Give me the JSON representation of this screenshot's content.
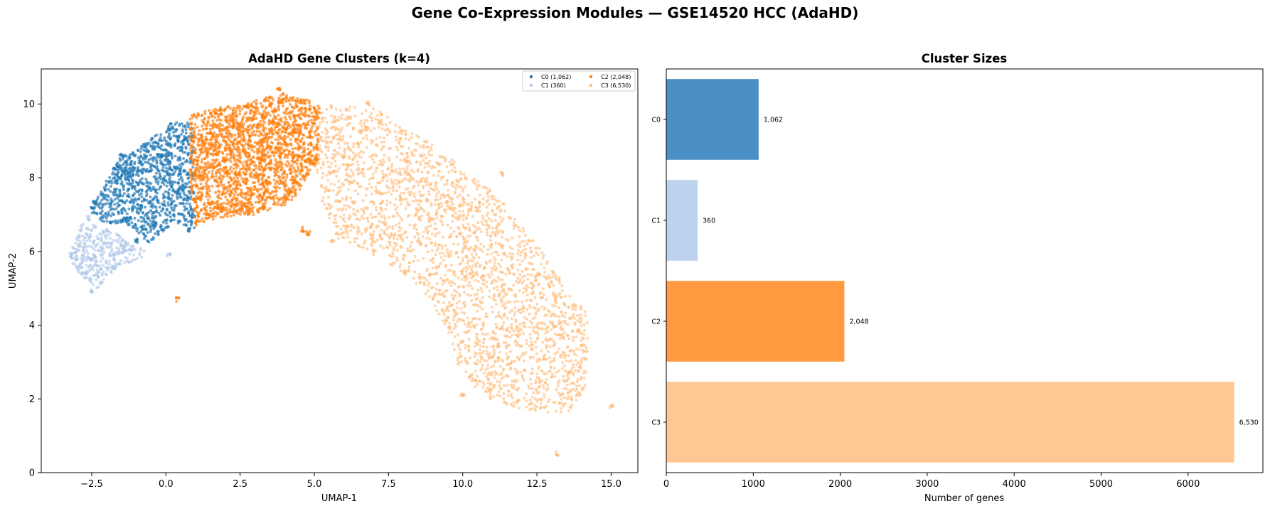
{
  "figure": {
    "suptitle": "Gene Co-Expression Modules — GSE14520 HCC (AdaHD)"
  },
  "chart_data": [
    {
      "type": "scatter",
      "title": "AdaHD Gene Clusters (k=4)",
      "xlabel": "UMAP-1",
      "ylabel": "UMAP-2",
      "xlim": [
        -4.2,
        15.9
      ],
      "ylim": [
        0,
        10.95
      ],
      "xticks": [
        -2.5,
        0.0,
        2.5,
        5.0,
        7.5,
        10.0,
        12.5,
        15.0
      ],
      "xtick_labels": [
        "−2.5",
        "0.0",
        "2.5",
        "5.0",
        "7.5",
        "10.0",
        "12.5",
        "15.0"
      ],
      "yticks": [
        0,
        2,
        4,
        6,
        8,
        10
      ],
      "ytick_labels": [
        "0",
        "2",
        "4",
        "6",
        "8",
        "10"
      ],
      "grid": false,
      "legend_position": "top-right",
      "legend_columns": 2,
      "series": [
        {
          "name": "C0 (1,062)",
          "color": "#1f77b4",
          "count": 1062,
          "region": [
            [
              -2.6,
              7.1
            ],
            [
              -1.6,
              8.5
            ],
            [
              -0.6,
              9.0
            ],
            [
              0.2,
              9.5
            ],
            [
              0.9,
              9.5
            ],
            [
              1.0,
              6.6
            ],
            [
              0.3,
              6.8
            ],
            [
              -0.6,
              6.2
            ],
            [
              -1.2,
              6.7
            ],
            [
              -2.1,
              6.8
            ]
          ],
          "points": [
            [
              0.4,
              9.1
            ],
            [
              -1.5,
              8.6
            ],
            [
              -2.4,
              7.3
            ],
            [
              -1.0,
              6.3
            ],
            [
              0.8,
              6.6
            ],
            [
              -0.2,
              8.6
            ]
          ]
        },
        {
          "name": "C1 (360)",
          "color": "#aec7e8",
          "count": 360,
          "region": [
            [
              -3.3,
              5.8
            ],
            [
              -2.8,
              6.8
            ],
            [
              -1.9,
              6.6
            ],
            [
              -0.9,
              6.1
            ],
            [
              -0.5,
              5.9
            ],
            [
              -1.6,
              5.6
            ],
            [
              -2.3,
              5.0
            ],
            [
              -3.1,
              5.5
            ]
          ],
          "points": [
            [
              -3.2,
              5.9
            ],
            [
              -2.5,
              4.9
            ],
            [
              -2.6,
              6.9
            ],
            [
              0.1,
              5.9
            ]
          ]
        },
        {
          "name": "C2 (2,048)",
          "color": "#ff7f0e",
          "count": 2048,
          "region": [
            [
              0.8,
              9.7
            ],
            [
              1.8,
              9.9
            ],
            [
              3.0,
              10.1
            ],
            [
              4.0,
              10.3
            ],
            [
              5.2,
              10.0
            ],
            [
              5.1,
              8.4
            ],
            [
              4.2,
              7.3
            ],
            [
              3.0,
              7.0
            ],
            [
              1.7,
              6.9
            ],
            [
              1.0,
              6.7
            ],
            [
              0.8,
              8.0
            ]
          ],
          "points": [
            [
              3.8,
              10.4
            ],
            [
              0.4,
              4.7
            ],
            [
              4.8,
              6.5
            ],
            [
              4.6,
              6.6
            ],
            [
              3.3,
              7.2
            ]
          ]
        },
        {
          "name": "C3 (6,530)",
          "color": "#ffbb78",
          "count": 6530,
          "region": [
            [
              5.0,
              10.0
            ],
            [
              7.0,
              9.9
            ],
            [
              9.0,
              8.9
            ],
            [
              11.2,
              7.5
            ],
            [
              12.5,
              6.2
            ],
            [
              13.5,
              5.0
            ],
            [
              14.2,
              4.3
            ],
            [
              14.2,
              2.3
            ],
            [
              13.6,
              1.6
            ],
            [
              12.6,
              1.6
            ],
            [
              11.0,
              1.9
            ],
            [
              10.0,
              2.5
            ],
            [
              9.6,
              3.6
            ],
            [
              9.0,
              4.6
            ],
            [
              8.2,
              5.3
            ],
            [
              6.8,
              6.0
            ],
            [
              5.8,
              6.3
            ],
            [
              5.3,
              7.2
            ],
            [
              5.0,
              8.4
            ]
          ],
          "points": [
            [
              13.2,
              0.5
            ],
            [
              15.0,
              1.8
            ],
            [
              10.0,
              2.1
            ],
            [
              11.3,
              8.1
            ],
            [
              6.8,
              10.0
            ],
            [
              5.6,
              6.3
            ]
          ]
        }
      ]
    },
    {
      "type": "bar",
      "orientation": "horizontal",
      "title": "Cluster Sizes",
      "xlabel": "Number of genes",
      "ylabel": "",
      "xlim": [
        0,
        6860
      ],
      "xticks": [
        0,
        1000,
        2000,
        3000,
        4000,
        5000,
        6000
      ],
      "xtick_labels": [
        "0",
        "1000",
        "2000",
        "3000",
        "4000",
        "5000",
        "6000"
      ],
      "categories": [
        "C0",
        "C1",
        "C2",
        "C3"
      ],
      "values": [
        1062,
        360,
        2048,
        6530
      ],
      "value_labels": [
        "1,062",
        "360",
        "2,048",
        "6,530"
      ],
      "colors": [
        "#4a90c4",
        "#bdd2ec",
        "#ff9a40",
        "#ffc793"
      ],
      "grid": false
    }
  ]
}
